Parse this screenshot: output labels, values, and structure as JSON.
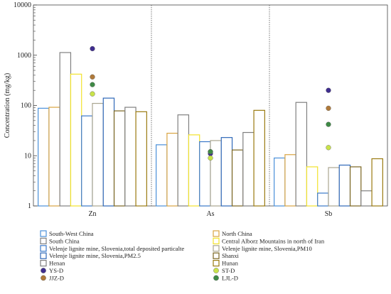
{
  "chart_data": {
    "type": "bar",
    "y_scale": "log",
    "ylim": [
      1,
      10000
    ],
    "ylabel": "Concentration (mg/kg)",
    "xlabel": "",
    "y_ticks": [
      1,
      10,
      100,
      1000,
      10000
    ],
    "y_tick_labels": [
      "1",
      "10",
      "100",
      "1000",
      "10000"
    ],
    "categories": [
      "Zn",
      "As",
      "Sb"
    ],
    "grid": false,
    "legend_position": "bottom",
    "colors": {
      "South-West China": "#4a90d9",
      "North China": "#d9a441",
      "South China": "#808080",
      "Central Alborz Mountains in north of Iran": "#f2e22c",
      "Velenje lignite mine, Slovenia,total deposited particalte": "#3a78c8",
      "Velenje lignite mine, Slovenia,PM10": "#aaa58f",
      "Velenje lignite mine, Slovenia,PM2.5": "#2f68b8",
      "Shanxi": "#7a6520",
      "Henan": "#7f7f7f",
      "Hunan": "#9a7a10",
      "YS-D": "#3f2d8f",
      "ST-D": "#c9e34a",
      "JJZ-D": "#b07a3a",
      "LJL-D": "#3f8a46"
    },
    "bar_series": [
      {
        "name": "South-West China",
        "values": [
          88,
          16.5,
          9
        ]
      },
      {
        "name": "North China",
        "values": [
          92,
          28,
          10.5
        ]
      },
      {
        "name": "South China",
        "values": [
          1130,
          65,
          115
        ]
      },
      {
        "name": "Central Alborz Mountains in north of Iran",
        "values": [
          420,
          26,
          6
        ]
      },
      {
        "name": "Velenje lignite mine, Slovenia,total deposited particalte",
        "values": [
          62,
          19,
          1.8
        ]
      },
      {
        "name": "Velenje lignite mine, Slovenia,PM10",
        "values": [
          110,
          20,
          5.8
        ]
      },
      {
        "name": "Velenje lignite mine, Slovenia,PM2.5",
        "values": [
          140,
          23,
          6.5
        ]
      },
      {
        "name": "Shanxi",
        "values": [
          78,
          13,
          6
        ]
      },
      {
        "name": "Henan",
        "values": [
          92,
          29,
          2
        ]
      },
      {
        "name": "Hunan",
        "values": [
          75,
          80,
          8.7
        ]
      }
    ],
    "point_series": [
      {
        "name": "YS-D",
        "values": [
          1350,
          11,
          200
        ]
      },
      {
        "name": "JJZ-D",
        "values": [
          370,
          12,
          88
        ]
      },
      {
        "name": "LJL-D",
        "values": [
          260,
          12,
          42
        ]
      },
      {
        "name": "ST-D",
        "values": [
          170,
          9,
          14.5
        ]
      }
    ],
    "legend": {
      "left": [
        "South-West China",
        "South China",
        "Velenje lignite mine, Slovenia,total deposited particalte",
        "Velenje lignite mine, Slovenia,PM2.5",
        "Henan",
        "YS-D",
        "JJZ-D"
      ],
      "right": [
        "North China",
        "Central Alborz Mountains in north of Iran",
        "Velenje lignite mine, Slovenia,PM10",
        "Shanxi",
        "Hunan",
        "ST-D",
        "LJL-D"
      ]
    }
  }
}
